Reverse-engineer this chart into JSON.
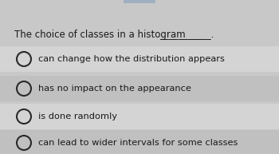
{
  "question": "The choice of classes in a histogram",
  "underline": "___________.",
  "options": [
    "can change how the distribution appears",
    "has no impact on the appearance",
    "is done randomly",
    "can lead to wider intervals for some classes"
  ],
  "bg_color": "#c8c8c8",
  "option_bg_light": "#d4d4d4",
  "option_bg_dark": "#c0c0c0",
  "question_fontsize": 8.5,
  "option_fontsize": 8.2,
  "text_color": "#1a1a1a",
  "circle_edge_color": "#2a2a2a",
  "circle_fill_color": "#d4d4d4",
  "top_bar_color": "#a0b0c0"
}
